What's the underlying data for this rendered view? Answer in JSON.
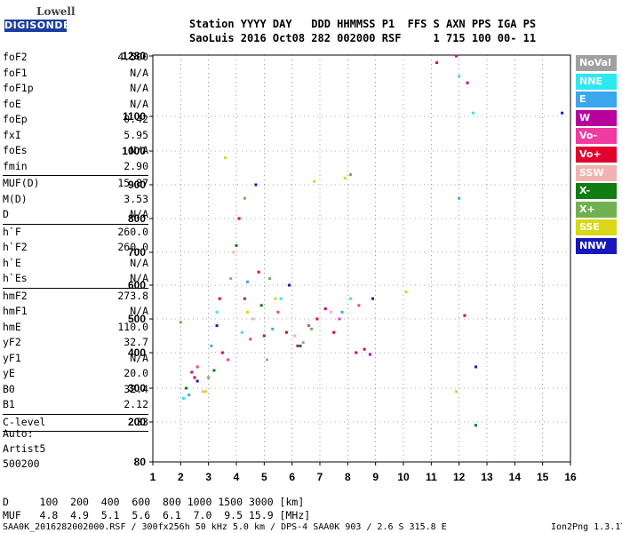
{
  "logo": {
    "top": "Lowell",
    "bottom": "DIGISONDE"
  },
  "header": {
    "line1": "Station YYYY DAY   DDD HHMMSS P1  FFS S AXN PPS IGA PS",
    "line2": "SaoLuis 2016 Oct08 282 002000 RSF     1 715 100 00- 11"
  },
  "params": [
    {
      "name": "foF2",
      "value": "4.500"
    },
    {
      "name": "foF1",
      "value": "N/A"
    },
    {
      "name": "foF1p",
      "value": "N/A"
    },
    {
      "name": "foE",
      "value": "N/A"
    },
    {
      "name": "foEp",
      "value": "0.42"
    },
    {
      "name": "fxI",
      "value": "5.95"
    },
    {
      "name": "foEs",
      "value": "N/A"
    },
    {
      "name": "fmin",
      "value": "2.90",
      "sep_after": true
    },
    {
      "name": "MUF(D)",
      "value": "15.87"
    },
    {
      "name": "M(D)",
      "value": "3.53"
    },
    {
      "name": "D",
      "value": "N/A",
      "sep_after": true
    },
    {
      "name": "h`F",
      "value": "260.0"
    },
    {
      "name": "h`F2",
      "value": "260.0"
    },
    {
      "name": "h`E",
      "value": "N/A"
    },
    {
      "name": "h`Es",
      "value": "N/A",
      "sep_after": true
    },
    {
      "name": "hmF2",
      "value": "273.8"
    },
    {
      "name": "hmF1",
      "value": "N/A"
    },
    {
      "name": "hmE",
      "value": "110.0"
    },
    {
      "name": "yF2",
      "value": "32.7"
    },
    {
      "name": "yF1",
      "value": "N/A"
    },
    {
      "name": "yE",
      "value": "20.0"
    },
    {
      "name": "B0",
      "value": "32.4"
    },
    {
      "name": "B1",
      "value": "2.12",
      "sep_after": true
    },
    {
      "name": "C-level",
      "value": "33",
      "sep_after": true
    }
  ],
  "auto": [
    "Auto:",
    "Artist5",
    "500200"
  ],
  "footer": {
    "d_line": "D     100  200  400  600  800 1000 1500 3000 [km]",
    "muf_line": "MUF   4.8  4.9  5.1  5.6  6.1  7.0  9.5 15.9 [MHz]",
    "file_line": "SAA0K_2016282002000.RSF / 300fx256h 50 kHz 5.0 km / DPS-4 SAA0K 903 / 2.6 S 315.8 E",
    "version": "Ion2Png 1.3.17"
  },
  "legend": [
    {
      "label": "NoVal",
      "color": "#a0a0a0"
    },
    {
      "label": "NNE",
      "color": "#2ee8f0"
    },
    {
      "label": "E",
      "color": "#3ba7ee"
    },
    {
      "label": "W",
      "color": "#b8009c"
    },
    {
      "label": "Vo-",
      "color": "#f03ca0"
    },
    {
      "label": "Vo+",
      "color": "#e2002c"
    },
    {
      "label": "SSW",
      "color": "#f0b4b0"
    },
    {
      "label": "X-",
      "color": "#117c11"
    },
    {
      "label": "X+",
      "color": "#70b050"
    },
    {
      "label": "SSE",
      "color": "#d8d816"
    },
    {
      "label": "NNW",
      "color": "#1818bc"
    }
  ],
  "chart_data": {
    "type": "scatter",
    "xlim": [
      1,
      16
    ],
    "ylim": [
      80,
      1280
    ],
    "y_scale": "non-linear (virtual height)",
    "x_ticks": [
      1,
      2,
      3,
      4,
      5,
      6,
      7,
      8,
      9,
      10,
      11,
      12,
      13,
      14,
      15,
      16
    ],
    "y_ticks": [
      80,
      200,
      300,
      400,
      500,
      600,
      700,
      800,
      900,
      1000,
      1100,
      1280
    ],
    "grid": true,
    "series": [
      {
        "name": "NoVal",
        "x": [
          2.2,
          3.8,
          5.1,
          6.4
        ],
        "y": [
          300,
          620,
          380,
          430
        ]
      },
      {
        "name": "NNE",
        "x": [
          2.1,
          3.3,
          4.2,
          5.6,
          8.1,
          12.0,
          12.5
        ],
        "y": [
          270,
          520,
          460,
          560,
          560,
          1220,
          1110
        ]
      },
      {
        "name": "E",
        "x": [
          2.3,
          3.1,
          4.4,
          5.3,
          7.8,
          12.0
        ],
        "y": [
          280,
          420,
          610,
          470,
          520,
          860
        ]
      },
      {
        "name": "W",
        "x": [
          2.4,
          3.5,
          4.3,
          5.0,
          6.2,
          7.2,
          8.3,
          8.8,
          11.2,
          11.9,
          12.3
        ],
        "y": [
          345,
          400,
          560,
          450,
          420,
          530,
          400,
          395,
          1260,
          1280,
          1200
        ]
      },
      {
        "name": "Vo-",
        "x": [
          2.6,
          3.7,
          4.5,
          5.5,
          6.6,
          7.7,
          8.4
        ],
        "y": [
          360,
          380,
          440,
          520,
          480,
          500,
          540
        ]
      },
      {
        "name": "Vo+",
        "x": [
          2.5,
          3.4,
          4.1,
          4.8,
          5.8,
          6.9,
          7.5,
          8.6,
          12.2
        ],
        "y": [
          330,
          560,
          800,
          640,
          460,
          500,
          460,
          410,
          510
        ]
      },
      {
        "name": "SSW",
        "x": [
          2.8,
          3.9,
          4.6,
          6.1,
          7.4
        ],
        "y": [
          290,
          700,
          500,
          450,
          520
        ]
      },
      {
        "name": "X-",
        "x": [
          2.2,
          3.2,
          4.0,
          4.9,
          6.3,
          12.6
        ],
        "y": [
          300,
          350,
          720,
          540,
          420,
          190
        ]
      },
      {
        "name": "X+",
        "x": [
          2.0,
          3.0,
          4.3,
          5.2,
          6.7,
          8.1
        ],
        "y": [
          490,
          330,
          860,
          620,
          470,
          930
        ]
      },
      {
        "name": "SSE",
        "x": [
          2.9,
          3.6,
          4.4,
          5.4,
          6.8,
          7.9,
          10.1,
          11.9
        ],
        "y": [
          290,
          980,
          520,
          560,
          910,
          920,
          580,
          290
        ]
      },
      {
        "name": "NNW",
        "x": [
          2.6,
          3.3,
          4.7,
          5.9,
          8.9,
          12.6,
          15.7
        ],
        "y": [
          320,
          480,
          900,
          600,
          560,
          360,
          1110
        ]
      }
    ]
  }
}
